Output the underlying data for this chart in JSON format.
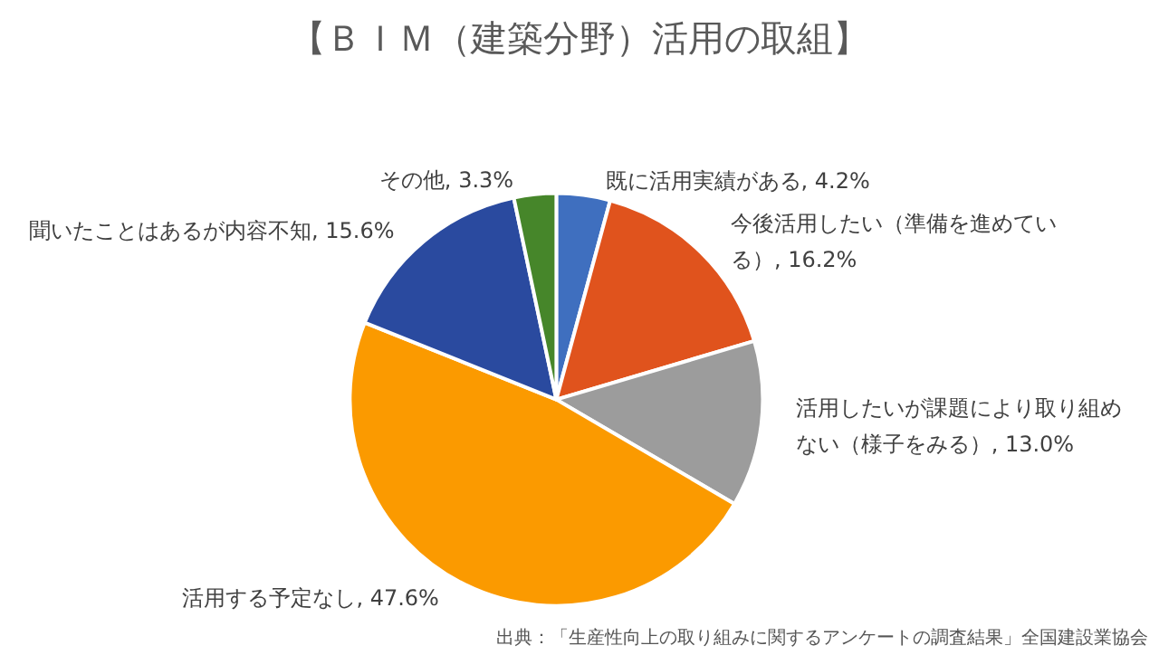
{
  "chart_data": {
    "type": "pie",
    "title": "【ＢＩＭ（建築分野）活用の取組】",
    "categories": [
      "既に活用実績がある",
      "今後活用したい（準備を進めている）",
      "活用したいが課題により取り組めない（様子をみる）",
      "活用する予定なし",
      "聞いたことはあるが内容不知",
      "その他"
    ],
    "value_labels": [
      "4.2%",
      "16.2%",
      "13.0%",
      "47.6%",
      "15.6%",
      "3.3%"
    ],
    "values": [
      4.2,
      16.2,
      13.0,
      47.6,
      15.6,
      3.3
    ],
    "colors": [
      "#3f6fbf",
      "#e0531d",
      "#9c9c9c",
      "#fb9a00",
      "#2a4a9f",
      "#46862a"
    ],
    "data_labels": true,
    "annotations": [
      "出典：「生産性向上の取り組みに関するアンケートの調査結果」全国建設業協会"
    ]
  }
}
